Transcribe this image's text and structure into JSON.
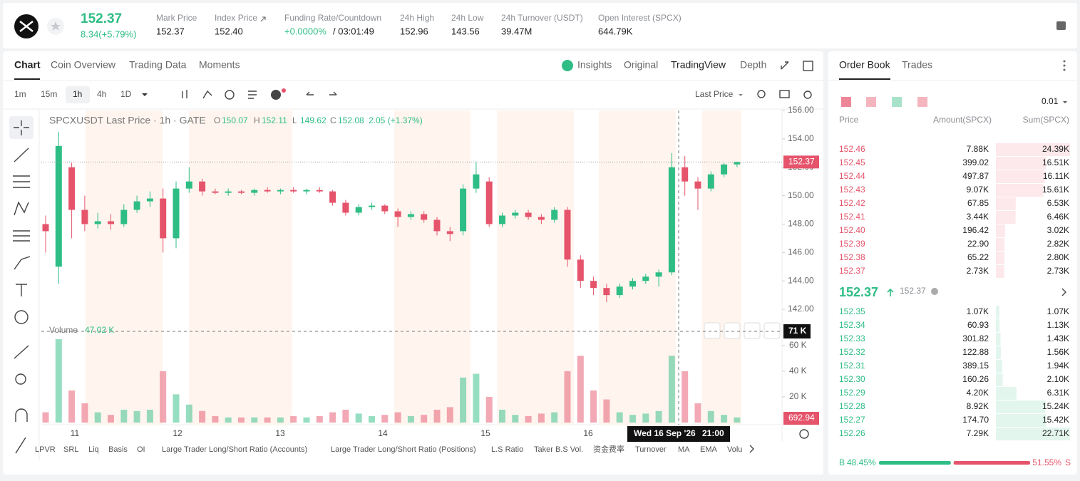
{
  "header": {
    "price": "152.37",
    "change": "8.34(+5.79%)",
    "stats": [
      {
        "label": "Mark Price",
        "value": "152.37"
      },
      {
        "label": "Index Price",
        "value": "152.40"
      },
      {
        "label": "Funding Rate/Countdown",
        "value": "+0.0000%",
        "extra": "/ 03:01:49"
      },
      {
        "label": "24h High",
        "value": "152.96"
      },
      {
        "label": "24h Low",
        "value": "143.56"
      },
      {
        "label": "24h Turnover (USDT)",
        "value": "39.47M"
      },
      {
        "label": "Open Interest (SPCX)",
        "value": "644.79K"
      }
    ]
  },
  "chart_tabs": [
    "Chart",
    "Coin Overview",
    "Trading Data",
    "Moments"
  ],
  "view_tabs": [
    "Insights",
    "Original",
    "TradingView",
    "Depth"
  ],
  "intervals": [
    "1m",
    "15m",
    "1h",
    "4h",
    "1D"
  ],
  "price_type": "Last Price",
  "legend": {
    "title": "SPCXUSDT Last Price · 1h · GATE",
    "ohlc": [
      {
        "k": "O",
        "v": "150.07"
      },
      {
        "k": "H",
        "v": "152.11"
      },
      {
        "k": "L",
        "v": "149.62"
      },
      {
        "k": "C",
        "v": "152.08"
      }
    ],
    "change": "2.05 (+1.37%)",
    "volume_label": "Volume",
    "volume_value": "47.02 K"
  },
  "chart_data": {
    "type": "candlestick",
    "up_color": "#2ebd85",
    "down_color": "#e5546b",
    "ylim": [
      141.2,
      156.0
    ],
    "yticks": [
      {
        "value": 156,
        "label": "156.00"
      },
      {
        "value": 154,
        "label": "154.00"
      },
      {
        "value": 152,
        "label": "152.00"
      },
      {
        "value": 150,
        "label": "150.00"
      },
      {
        "value": 148,
        "label": "148.00"
      },
      {
        "value": 146,
        "label": "146.00"
      },
      {
        "value": 144,
        "label": "144.00"
      },
      {
        "value": 142,
        "label": "142.00"
      }
    ],
    "y2lim": [
      0,
      76
    ],
    "y2ticks": [
      {
        "value": 60,
        "label": "60 K"
      },
      {
        "value": 40,
        "label": "40 K"
      },
      {
        "value": 20,
        "label": "20 K"
      }
    ],
    "xticks": [
      "11",
      "12",
      "13",
      "14",
      "15",
      "16"
    ],
    "last_price": 152.37,
    "last_volume": 692.94,
    "crosshair_volume": {
      "value": 71,
      "label": "71 K"
    },
    "crosshair_date": "Wed 16 Sep '26",
    "crosshair_time": "21:00",
    "candles": [
      [
        148,
        148.6,
        146,
        147.5
      ],
      [
        145,
        154.5,
        143.8,
        153.5
      ],
      [
        152,
        152.3,
        147,
        149
      ],
      [
        149,
        150,
        147.5,
        148
      ],
      [
        148,
        148.8,
        147.7,
        148.2
      ],
      [
        148.2,
        148.7,
        147.6,
        148
      ],
      [
        148,
        149.4,
        147.8,
        149
      ],
      [
        149,
        150,
        148.8,
        149.6
      ],
      [
        149.6,
        150.3,
        149.2,
        149.8
      ],
      [
        149.8,
        150.5,
        146,
        147
      ],
      [
        147,
        151,
        146.3,
        150.5
      ],
      [
        150.5,
        152,
        150.2,
        151
      ],
      [
        151,
        151.2,
        150,
        150.3
      ],
      [
        150.3,
        150.5,
        150.1,
        150.2
      ],
      [
        150.2,
        150.5,
        150,
        150.3
      ],
      [
        150.3,
        150.4,
        150.1,
        150.2
      ],
      [
        150.2,
        150.5,
        150,
        150.4
      ],
      [
        150.4,
        150.6,
        150.2,
        150.3
      ],
      [
        150.3,
        150.5,
        150.1,
        150.4
      ],
      [
        150.4,
        150.6,
        150.2,
        150.3
      ],
      [
        150.3,
        150.5,
        150.1,
        150.4
      ],
      [
        150.4,
        150.6,
        150.2,
        150.3
      ],
      [
        150.3,
        150.4,
        149.3,
        149.5
      ],
      [
        149.5,
        149.7,
        148.6,
        148.8
      ],
      [
        148.8,
        149.4,
        148.6,
        149.2
      ],
      [
        149.2,
        149.5,
        149,
        149.3
      ],
      [
        149.3,
        149.4,
        148.7,
        148.9
      ],
      [
        148.9,
        149.1,
        147.8,
        148.5
      ],
      [
        148.5,
        148.9,
        148.3,
        148.7
      ],
      [
        148.7,
        148.9,
        148.1,
        148.3
      ],
      [
        148.3,
        148.5,
        147.2,
        147.5
      ],
      [
        147.5,
        147.8,
        146.8,
        147.3
      ],
      [
        147.5,
        150.8,
        147.2,
        150.5
      ],
      [
        150.5,
        152.4,
        150.2,
        151.5
      ],
      [
        151,
        151.3,
        147.8,
        148
      ],
      [
        148,
        148.8,
        147.8,
        148.6
      ],
      [
        148.6,
        149,
        148.4,
        148.8
      ],
      [
        148.8,
        149,
        148.3,
        148.5
      ],
      [
        148.5,
        148.7,
        148,
        148.3
      ],
      [
        148.3,
        149.2,
        148.1,
        149
      ],
      [
        149,
        149.2,
        145,
        145.5
      ],
      [
        145.5,
        145.8,
        143.5,
        144
      ],
      [
        144,
        144.3,
        143,
        143.5
      ],
      [
        143.5,
        143.8,
        142.5,
        143
      ],
      [
        143,
        143.8,
        142.8,
        143.6
      ],
      [
        143.6,
        144.2,
        143.4,
        144
      ],
      [
        144,
        144.5,
        143.8,
        144.3
      ],
      [
        144.3,
        144.8,
        143.6,
        144.6
      ],
      [
        144.6,
        153,
        144.4,
        152
      ],
      [
        152,
        152.8,
        150,
        151
      ],
      [
        151,
        151.3,
        149,
        150.5
      ],
      [
        150.5,
        151.7,
        150.3,
        151.5
      ],
      [
        151.5,
        152.3,
        151.3,
        152.2
      ],
      [
        152.2,
        152.4,
        152,
        152.37
      ]
    ],
    "volumes": [
      8,
      65,
      25,
      15,
      8,
      6,
      10,
      9,
      10,
      40,
      22,
      14,
      9,
      5,
      4,
      4,
      4,
      4,
      4,
      5,
      4,
      5,
      8,
      10,
      7,
      5,
      6,
      8,
      5,
      6,
      10,
      12,
      35,
      38,
      20,
      10,
      6,
      5,
      7,
      8,
      40,
      52,
      25,
      18,
      8,
      6,
      7,
      9,
      52,
      40,
      15,
      9,
      6,
      4
    ]
  },
  "indicators": [
    "LPVR",
    "SRL",
    "Liq",
    "Basis",
    "OI",
    "Large Trader Long/Short Ratio (Accounts)",
    "Large Trader Long/Short Ratio (Positions)",
    "L.S Ratio",
    "Taker B.S Vol.",
    "资金费率",
    "Turnover",
    "MA",
    "EMA",
    "Volu"
  ],
  "order_book": {
    "tabs": [
      "Order Book",
      "Trades"
    ],
    "precision": "0.01",
    "headers": [
      "Price",
      "Amount(SPCX)",
      "Sum(SPCX)"
    ],
    "asks": [
      {
        "price": "152.46",
        "amount": "7.88K",
        "sum": {
          "value": 24390,
          "label": "24.39K"
        }
      },
      {
        "price": "152.45",
        "amount": "399.02",
        "sum": {
          "value": 16510,
          "label": "16.51K"
        }
      },
      {
        "price": "152.44",
        "amount": "497.87",
        "sum": {
          "value": 16110,
          "label": "16.11K"
        }
      },
      {
        "price": "152.43",
        "amount": "9.07K",
        "sum": {
          "value": 15610,
          "label": "15.61K"
        }
      },
      {
        "price": "152.42",
        "amount": "67.85",
        "sum": {
          "value": 6530,
          "label": "6.53K"
        }
      },
      {
        "price": "152.41",
        "amount": "3.44K",
        "sum": {
          "value": 6460,
          "label": "6.46K"
        }
      },
      {
        "price": "152.40",
        "amount": "196.42",
        "sum": {
          "value": 3020,
          "label": "3.02K"
        }
      },
      {
        "price": "152.39",
        "amount": "22.90",
        "sum": {
          "value": 2820,
          "label": "2.82K"
        }
      },
      {
        "price": "152.38",
        "amount": "65.22",
        "sum": {
          "value": 2800,
          "label": "2.80K"
        }
      },
      {
        "price": "152.37",
        "amount": "2.73K",
        "sum": {
          "value": 2730,
          "label": "2.73K"
        }
      }
    ],
    "mid_price": "152.37",
    "mark_price": "152.37",
    "bids": [
      {
        "price": "152.35",
        "amount": "1.07K",
        "sum": {
          "value": 1070,
          "label": "1.07K"
        }
      },
      {
        "price": "152.34",
        "amount": "60.93",
        "sum": {
          "value": 1130,
          "label": "1.13K"
        }
      },
      {
        "price": "152.33",
        "amount": "301.82",
        "sum": {
          "value": 1430,
          "label": "1.43K"
        }
      },
      {
        "price": "152.32",
        "amount": "122.88",
        "sum": {
          "value": 1560,
          "label": "1.56K"
        }
      },
      {
        "price": "152.31",
        "amount": "389.15",
        "sum": {
          "value": 1940,
          "label": "1.94K"
        }
      },
      {
        "price": "152.30",
        "amount": "160.26",
        "sum": {
          "value": 2100,
          "label": "2.10K"
        }
      },
      {
        "price": "152.29",
        "amount": "4.20K",
        "sum": {
          "value": 6310,
          "label": "6.31K"
        }
      },
      {
        "price": "152.28",
        "amount": "8.92K",
        "sum": {
          "value": 15240,
          "label": "15.24K"
        }
      },
      {
        "price": "152.27",
        "amount": "174.70",
        "sum": {
          "value": 15420,
          "label": "15.42K"
        }
      },
      {
        "price": "152.26",
        "amount": "7.29K",
        "sum": {
          "value": 22710,
          "label": "22.71K"
        }
      }
    ],
    "buy_letter": "B",
    "buy_ratio": {
      "value": 48.45,
      "label": "48.45%"
    },
    "sell_ratio": {
      "value": 51.55,
      "label": "51.55%"
    },
    "sell_letter": "S"
  }
}
